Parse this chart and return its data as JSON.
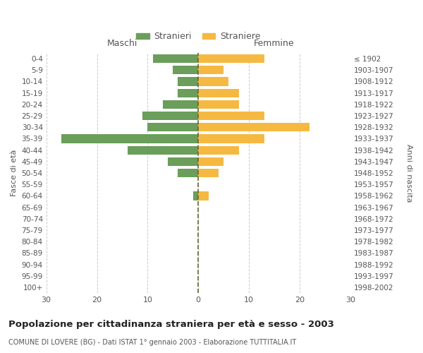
{
  "age_groups": [
    "0-4",
    "5-9",
    "10-14",
    "15-19",
    "20-24",
    "25-29",
    "30-34",
    "35-39",
    "40-44",
    "45-49",
    "50-54",
    "55-59",
    "60-64",
    "65-69",
    "70-74",
    "75-79",
    "80-84",
    "85-89",
    "90-94",
    "95-99",
    "100+"
  ],
  "birth_years": [
    "1998-2002",
    "1993-1997",
    "1988-1992",
    "1983-1987",
    "1978-1982",
    "1973-1977",
    "1968-1972",
    "1963-1967",
    "1958-1962",
    "1953-1957",
    "1948-1952",
    "1943-1947",
    "1938-1942",
    "1933-1937",
    "1928-1932",
    "1923-1927",
    "1918-1922",
    "1913-1917",
    "1908-1912",
    "1903-1907",
    "≤ 1902"
  ],
  "males": [
    9,
    5,
    4,
    4,
    7,
    11,
    10,
    27,
    14,
    6,
    4,
    0,
    1,
    0,
    0,
    0,
    0,
    0,
    0,
    0,
    0
  ],
  "females": [
    13,
    5,
    6,
    8,
    8,
    13,
    22,
    13,
    8,
    5,
    4,
    0,
    2,
    0,
    0,
    0,
    0,
    0,
    0,
    0,
    0
  ],
  "male_color": "#6a9e5a",
  "female_color": "#f5b942",
  "background_color": "#ffffff",
  "grid_color": "#cccccc",
  "title": "Popolazione per cittadinanza straniera per età e sesso - 2003",
  "subtitle": "COMUNE DI LOVERE (BG) - Dati ISTAT 1° gennaio 2003 - Elaborazione TUTTITALIA.IT",
  "left_label": "Maschi",
  "right_label": "Femmine",
  "y_left_label": "Fasce di età",
  "y_right_label": "Anni di nascita",
  "legend_male": "Stranieri",
  "legend_female": "Straniere",
  "xlim": 30,
  "xticks": [
    -30,
    -20,
    -10,
    0,
    10,
    20,
    30
  ],
  "xticklabels": [
    "30",
    "20",
    "10",
    "0",
    "10",
    "20",
    "30"
  ],
  "dashed_line_color": "#666633",
  "bar_height": 0.75
}
